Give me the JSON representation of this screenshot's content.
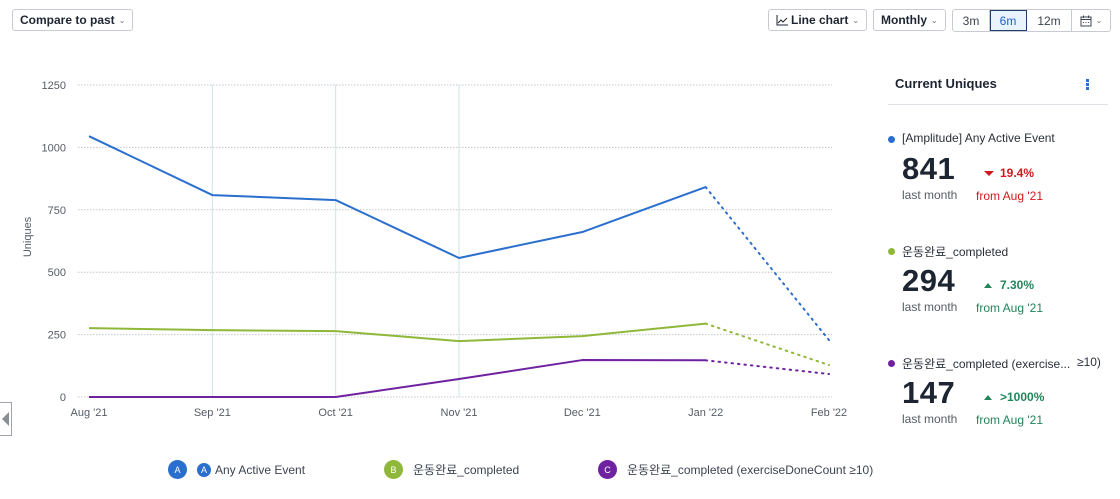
{
  "toolbar": {
    "compare_label": "Compare to past",
    "chart_type_label": "Line chart",
    "interval_label": "Monthly",
    "ranges": [
      "3m",
      "6m",
      "12m"
    ],
    "active_range": "6m",
    "calendar_icon": "calendar-icon"
  },
  "colors": {
    "series_a": "#2b6fce",
    "series_b": "#8fb83a",
    "series_c": "#6f22a0",
    "down": "#d0191e",
    "up": "#23845a"
  },
  "chart_data": {
    "type": "line",
    "title": "",
    "xlabel": "",
    "ylabel": "Uniques",
    "ylim": [
      0,
      1250
    ],
    "yticks": [
      0,
      250,
      500,
      750,
      1000,
      1250
    ],
    "ytick_labels": [
      "0",
      "250",
      "500",
      "750",
      "1000",
      "1250"
    ],
    "categories": [
      "Aug '21",
      "Sep '21",
      "Oct '21",
      "Nov '21",
      "Dec '21",
      "Jan '22",
      "Feb '22"
    ],
    "grid": true,
    "incomplete_from_index": 5,
    "series": [
      {
        "name": "Any Active Event",
        "key": "A",
        "values": [
          1045,
          809,
          789,
          557,
          661,
          841,
          228
        ]
      },
      {
        "name": "운동완료_completed",
        "key": "B",
        "values": [
          276,
          268,
          264,
          224,
          244,
          294,
          128
        ]
      },
      {
        "name": "운동완료_completed (exerciseDoneCount ≥10)",
        "key": "C",
        "values": [
          0,
          0,
          0,
          72,
          148,
          147,
          92
        ]
      }
    ]
  },
  "panel": {
    "title": "Current Uniques",
    "metrics": [
      {
        "name": "[Amplitude] Any Active Event",
        "name_suffix": "",
        "value": "841",
        "sub": "last month",
        "change": "19.4%",
        "direction": "down",
        "from": "from Aug '21"
      },
      {
        "name": "운동완료_completed",
        "name_suffix": "",
        "value": "294",
        "sub": "last month",
        "change": "7.30%",
        "direction": "up",
        "from": "from Aug '21"
      },
      {
        "name": "운동완료_completed (exercise...",
        "name_suffix": "≥10)",
        "value": "147",
        "sub": "last month",
        "change": ">1000%",
        "direction": "up",
        "from": "from Aug '21"
      }
    ]
  },
  "legend": [
    {
      "badge": "A",
      "label": "Any Active Event",
      "icon_letter": "A"
    },
    {
      "badge": "B",
      "label": "운동완료_completed"
    },
    {
      "badge": "C",
      "label": "운동완료_completed (exerciseDoneCount ≥10)"
    }
  ]
}
